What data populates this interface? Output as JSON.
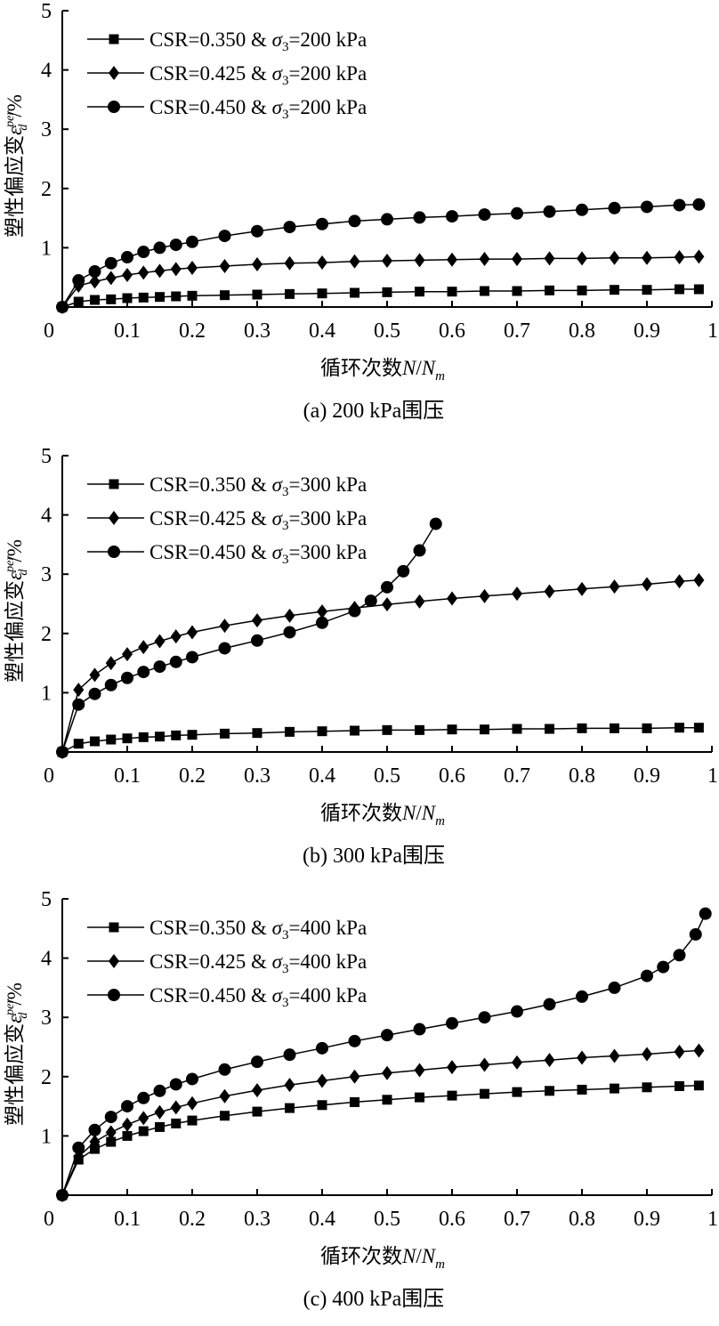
{
  "figure": {
    "x_label_text": "循环次数",
    "x_label_var_N": "N",
    "x_label_slash": "/",
    "x_label_var_Nm": "N",
    "x_label_sub_m": "m",
    "y_label_text": "塑性偏应变",
    "y_label_symbol": "ε",
    "y_label_sup": "per",
    "y_label_sub": "d",
    "y_label_unit": "/%"
  },
  "chart_data": [
    {
      "type": "line",
      "caption": "(a) 200 kPa围压",
      "xlim": [
        0,
        1
      ],
      "ylim": [
        0,
        5
      ],
      "xticks": [
        "0",
        "0.1",
        "0.2",
        "0.3",
        "0.4",
        "0.5",
        "0.6",
        "0.7",
        "0.8",
        "0.9",
        "1"
      ],
      "yticks": [
        "1",
        "2",
        "3",
        "4",
        "5"
      ],
      "legend_position": "top-left",
      "grid": false,
      "series": [
        {
          "name": "CSR=0.350 & σ3=200 kPa",
          "name_parts": [
            "CSR=0.350 & ",
            "σ",
            "3",
            "=200 kPa"
          ],
          "marker": "square",
          "x": [
            0,
            0.025,
            0.05,
            0.075,
            0.1,
            0.125,
            0.15,
            0.175,
            0.2,
            0.25,
            0.3,
            0.35,
            0.4,
            0.45,
            0.5,
            0.55,
            0.6,
            0.65,
            0.7,
            0.75,
            0.8,
            0.85,
            0.9,
            0.95,
            0.98
          ],
          "y": [
            0,
            0.09,
            0.12,
            0.13,
            0.15,
            0.16,
            0.17,
            0.18,
            0.19,
            0.2,
            0.21,
            0.22,
            0.23,
            0.24,
            0.25,
            0.26,
            0.26,
            0.27,
            0.27,
            0.28,
            0.28,
            0.29,
            0.29,
            0.3,
            0.3
          ]
        },
        {
          "name": "CSR=0.425 & σ3=200 kPa",
          "name_parts": [
            "CSR=0.425 & ",
            "σ",
            "3",
            "=200 kPa"
          ],
          "marker": "diamond",
          "x": [
            0,
            0.025,
            0.05,
            0.075,
            0.1,
            0.125,
            0.15,
            0.175,
            0.2,
            0.25,
            0.3,
            0.35,
            0.4,
            0.45,
            0.5,
            0.55,
            0.6,
            0.65,
            0.7,
            0.75,
            0.8,
            0.85,
            0.9,
            0.95,
            0.98
          ],
          "y": [
            0,
            0.36,
            0.43,
            0.49,
            0.54,
            0.58,
            0.61,
            0.64,
            0.66,
            0.69,
            0.72,
            0.74,
            0.75,
            0.77,
            0.78,
            0.79,
            0.8,
            0.81,
            0.81,
            0.82,
            0.82,
            0.83,
            0.83,
            0.84,
            0.85
          ]
        },
        {
          "name": "CSR=0.450 & σ3=200 kPa",
          "name_parts": [
            "CSR=0.450 & ",
            "σ",
            "3",
            "=200 kPa"
          ],
          "marker": "circle",
          "x": [
            0,
            0.025,
            0.05,
            0.075,
            0.1,
            0.125,
            0.15,
            0.175,
            0.2,
            0.25,
            0.3,
            0.35,
            0.4,
            0.45,
            0.5,
            0.55,
            0.6,
            0.65,
            0.7,
            0.75,
            0.8,
            0.85,
            0.9,
            0.95,
            0.98
          ],
          "y": [
            0,
            0.45,
            0.6,
            0.74,
            0.84,
            0.93,
            1.0,
            1.05,
            1.1,
            1.2,
            1.28,
            1.35,
            1.4,
            1.45,
            1.48,
            1.51,
            1.53,
            1.56,
            1.58,
            1.61,
            1.64,
            1.67,
            1.69,
            1.72,
            1.73
          ]
        }
      ]
    },
    {
      "type": "line",
      "caption": "(b) 300 kPa围压",
      "xlim": [
        0,
        1
      ],
      "ylim": [
        0,
        5
      ],
      "xticks": [
        "0",
        "0.1",
        "0.2",
        "0.3",
        "0.4",
        "0.5",
        "0.6",
        "0.7",
        "0.8",
        "0.9",
        "1"
      ],
      "yticks": [
        "1",
        "2",
        "3",
        "4",
        "5"
      ],
      "legend_position": "top-left",
      "grid": false,
      "series": [
        {
          "name": "CSR=0.350 & σ3=300 kPa",
          "name_parts": [
            "CSR=0.350 & ",
            "σ",
            "3",
            "=300 kPa"
          ],
          "marker": "square",
          "x": [
            0,
            0.025,
            0.05,
            0.075,
            0.1,
            0.125,
            0.15,
            0.175,
            0.2,
            0.25,
            0.3,
            0.35,
            0.4,
            0.45,
            0.5,
            0.55,
            0.6,
            0.65,
            0.7,
            0.75,
            0.8,
            0.85,
            0.9,
            0.95,
            0.98
          ],
          "y": [
            0,
            0.14,
            0.18,
            0.21,
            0.23,
            0.25,
            0.26,
            0.28,
            0.29,
            0.31,
            0.32,
            0.34,
            0.35,
            0.36,
            0.37,
            0.37,
            0.38,
            0.38,
            0.39,
            0.39,
            0.4,
            0.4,
            0.4,
            0.41,
            0.41
          ]
        },
        {
          "name": "CSR=0.425 & σ3=300 kPa",
          "name_parts": [
            "CSR=0.425 & ",
            "σ",
            "3",
            "=300 kPa"
          ],
          "marker": "diamond",
          "x": [
            0,
            0.025,
            0.05,
            0.075,
            0.1,
            0.125,
            0.15,
            0.175,
            0.2,
            0.25,
            0.3,
            0.35,
            0.4,
            0.45,
            0.5,
            0.55,
            0.6,
            0.65,
            0.7,
            0.75,
            0.8,
            0.85,
            0.9,
            0.95,
            0.98
          ],
          "y": [
            0,
            1.05,
            1.3,
            1.5,
            1.65,
            1.77,
            1.87,
            1.95,
            2.02,
            2.13,
            2.22,
            2.3,
            2.37,
            2.43,
            2.49,
            2.54,
            2.59,
            2.63,
            2.67,
            2.71,
            2.75,
            2.79,
            2.83,
            2.88,
            2.9
          ]
        },
        {
          "name": "CSR=0.450 & σ3=300 kPa",
          "name_parts": [
            "CSR=0.450 & ",
            "σ",
            "3",
            "=300 kPa"
          ],
          "marker": "circle",
          "x": [
            0,
            0.025,
            0.05,
            0.075,
            0.1,
            0.125,
            0.15,
            0.175,
            0.2,
            0.25,
            0.3,
            0.35,
            0.4,
            0.45,
            0.475,
            0.5,
            0.525,
            0.55,
            0.575
          ],
          "y": [
            0,
            0.8,
            0.98,
            1.13,
            1.25,
            1.35,
            1.44,
            1.52,
            1.6,
            1.75,
            1.88,
            2.02,
            2.18,
            2.38,
            2.55,
            2.78,
            3.05,
            3.4,
            3.85
          ]
        }
      ]
    },
    {
      "type": "line",
      "caption": "(c) 400 kPa围压",
      "xlim": [
        0,
        1
      ],
      "ylim": [
        0,
        5
      ],
      "xticks": [
        "0",
        "0.1",
        "0.2",
        "0.3",
        "0.4",
        "0.5",
        "0.6",
        "0.7",
        "0.8",
        "0.9",
        "1"
      ],
      "yticks": [
        "1",
        "2",
        "3",
        "4",
        "5"
      ],
      "legend_position": "top-left",
      "grid": false,
      "series": [
        {
          "name": "CSR=0.350 & σ3=400 kPa",
          "name_parts": [
            "CSR=0.350 & ",
            "σ",
            "3",
            "=400 kPa"
          ],
          "marker": "square",
          "x": [
            0,
            0.025,
            0.05,
            0.075,
            0.1,
            0.125,
            0.15,
            0.175,
            0.2,
            0.25,
            0.3,
            0.35,
            0.4,
            0.45,
            0.5,
            0.55,
            0.6,
            0.65,
            0.7,
            0.75,
            0.8,
            0.85,
            0.9,
            0.95,
            0.98
          ],
          "y": [
            0,
            0.6,
            0.78,
            0.9,
            1.0,
            1.08,
            1.15,
            1.21,
            1.26,
            1.34,
            1.41,
            1.47,
            1.52,
            1.57,
            1.61,
            1.65,
            1.68,
            1.71,
            1.74,
            1.76,
            1.78,
            1.8,
            1.82,
            1.84,
            1.85
          ]
        },
        {
          "name": "CSR=0.425 & σ3=400 kPa",
          "name_parts": [
            "CSR=0.425 & ",
            "σ",
            "3",
            "=400 kPa"
          ],
          "marker": "diamond",
          "x": [
            0,
            0.025,
            0.05,
            0.075,
            0.1,
            0.125,
            0.15,
            0.175,
            0.2,
            0.25,
            0.3,
            0.35,
            0.4,
            0.45,
            0.5,
            0.55,
            0.6,
            0.65,
            0.7,
            0.75,
            0.8,
            0.85,
            0.9,
            0.95,
            0.98
          ],
          "y": [
            0,
            0.65,
            0.9,
            1.06,
            1.19,
            1.3,
            1.4,
            1.48,
            1.55,
            1.67,
            1.77,
            1.86,
            1.93,
            2.0,
            2.06,
            2.11,
            2.16,
            2.2,
            2.24,
            2.28,
            2.32,
            2.35,
            2.38,
            2.42,
            2.44
          ]
        },
        {
          "name": "CSR=0.450 & σ3=400 kPa",
          "name_parts": [
            "CSR=0.450 & ",
            "σ",
            "3",
            "=400 kPa"
          ],
          "marker": "circle",
          "x": [
            0,
            0.025,
            0.05,
            0.075,
            0.1,
            0.125,
            0.15,
            0.175,
            0.2,
            0.25,
            0.3,
            0.35,
            0.4,
            0.45,
            0.5,
            0.55,
            0.6,
            0.65,
            0.7,
            0.75,
            0.8,
            0.85,
            0.9,
            0.925,
            0.95,
            0.975,
            0.99
          ],
          "y": [
            0,
            0.8,
            1.1,
            1.32,
            1.5,
            1.64,
            1.76,
            1.87,
            1.96,
            2.12,
            2.25,
            2.37,
            2.48,
            2.6,
            2.7,
            2.8,
            2.9,
            3.0,
            3.1,
            3.22,
            3.35,
            3.5,
            3.7,
            3.85,
            4.05,
            4.4,
            4.75
          ]
        }
      ]
    }
  ]
}
